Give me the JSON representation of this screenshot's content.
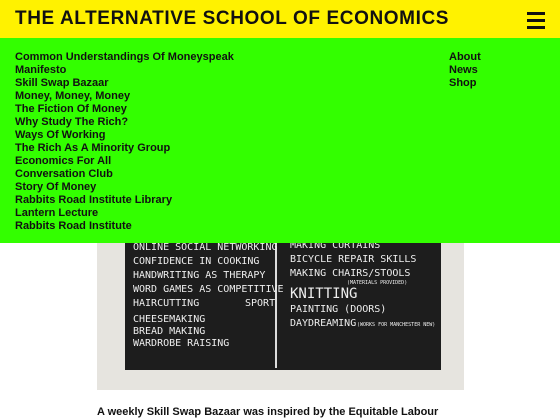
{
  "header": {
    "title": "THE ALTERNATIVE SCHOOL OF ECONOMICS"
  },
  "menu": {
    "left": [
      "Common Understandings Of Moneyspeak",
      "Manifesto",
      "Skill Swap Bazaar",
      "Money, Money, Money",
      "The Fiction Of Money",
      "Why Study The Rich?",
      "Ways Of Working",
      "The Rich As A Minority Group",
      "Economics For All",
      "Conversation Club",
      "Story Of Money",
      "Rabbits Road Institute Library",
      "Lantern Lecture",
      "Rabbits Road Institute"
    ],
    "right": [
      "About",
      "News",
      "Shop"
    ]
  },
  "blackboard": {
    "left": [
      "ONLINE SOCIAL NETWORKING",
      "CONFIDENCE IN COOKING",
      "HANDWRITING AS THERAPY",
      "WORD GAMES AS COMPETITIVE",
      "HAIRCUTTING",
      "CHEESEMAKING",
      "BREAD MAKING",
      "WARDROBE RAISING"
    ],
    "left_extra": "SPORT",
    "right": [
      "MAKING CURTAINS",
      "BICYCLE REPAIR SKILLS",
      "MAKING CHAIRS/STOOLS",
      "KNITTING",
      "PAINTING (DOORS)",
      "DAYDREAMING"
    ],
    "right_notes": [
      "(MATERIALS PROVIDED)",
      "(WORKS FOR MANCHESTER NEW)"
    ]
  },
  "caption": "A weekly Skill Swap Bazaar was inspired by the Equitable Labour"
}
